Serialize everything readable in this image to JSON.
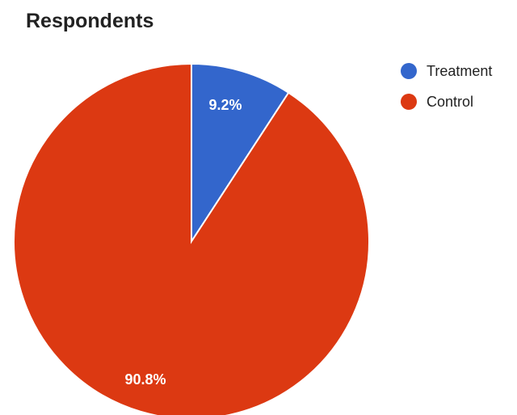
{
  "chart_data": {
    "type": "pie",
    "title": "Respondents",
    "legend_position": "right",
    "slices": [
      {
        "name": "Treatment",
        "value": 9.2,
        "label": "9.2%",
        "color": "#3366CC"
      },
      {
        "name": "Control",
        "value": 90.8,
        "label": "90.8%",
        "color": "#DC3912"
      }
    ]
  }
}
